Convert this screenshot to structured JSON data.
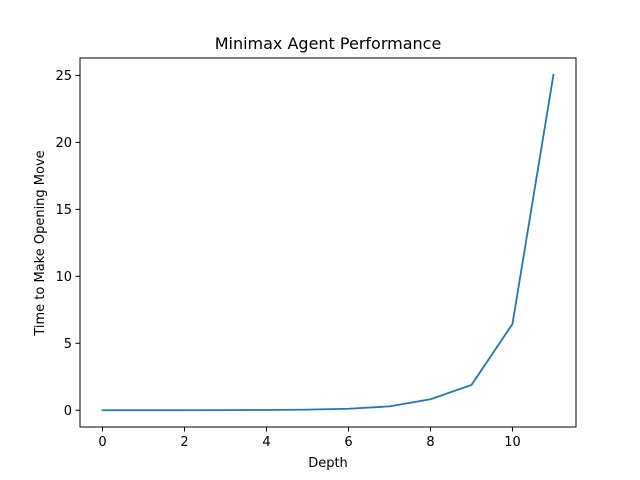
{
  "chart_data": {
    "type": "line",
    "title": "Minimax Agent Performance",
    "xlabel": "Depth",
    "ylabel": "Time to Make Opening Move",
    "xlim": [
      -0.55,
      11.55
    ],
    "ylim": [
      -1.25,
      26.3
    ],
    "xticks": [
      0,
      2,
      4,
      6,
      8,
      10
    ],
    "xtick_labels": [
      "0",
      "2",
      "4",
      "6",
      "8",
      "10"
    ],
    "yticks": [
      0,
      5,
      10,
      15,
      20,
      25
    ],
    "ytick_labels": [
      "0",
      "5",
      "10",
      "15",
      "20",
      "25"
    ],
    "grid": false,
    "legend": "none",
    "line_color": "#1f77b4",
    "series": [
      {
        "x": [
          0,
          1,
          2,
          3,
          4,
          5,
          6,
          7,
          8,
          9,
          10,
          11
        ],
        "values": [
          0.0,
          0.0,
          0.0,
          0.01,
          0.02,
          0.05,
          0.11,
          0.29,
          0.82,
          1.89,
          6.44,
          25.05
        ]
      }
    ]
  }
}
